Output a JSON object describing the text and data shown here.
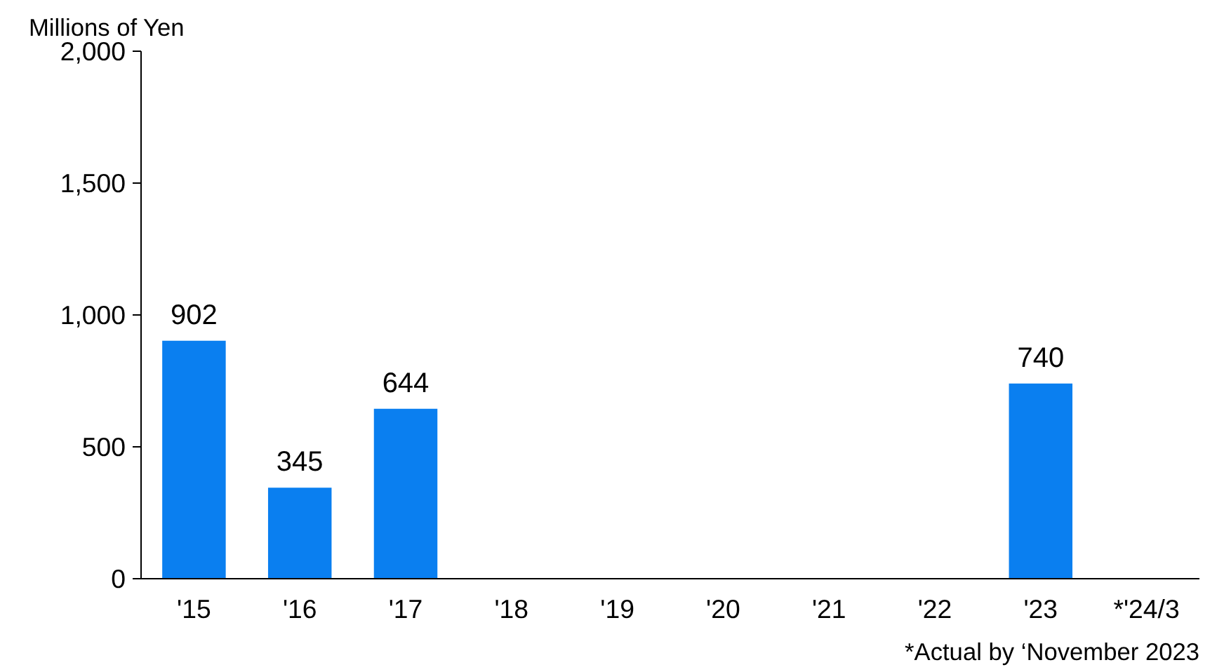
{
  "chart_data": {
    "type": "bar",
    "ylabel": "Millions of Yen",
    "categories": [
      "'15",
      "'16",
      "'17",
      "'18",
      "'19",
      "'20",
      "'21",
      "'22",
      "'23",
      "*'24/3"
    ],
    "values": [
      902,
      345,
      644,
      null,
      null,
      null,
      null,
      null,
      740,
      null
    ],
    "color": "#0a7ff0",
    "data_labels": true,
    "ylim": [
      0,
      2000
    ],
    "yticks": [
      0,
      {
        "value": 500,
        "label": "500"
      },
      {
        "value": 1000,
        "label": "1,000"
      },
      {
        "value": 1500,
        "label": "1,500"
      },
      {
        "value": 2000,
        "label": "2,000"
      }
    ],
    "grid": false,
    "annotations": [
      "*Actual by ‘November 2023"
    ]
  }
}
